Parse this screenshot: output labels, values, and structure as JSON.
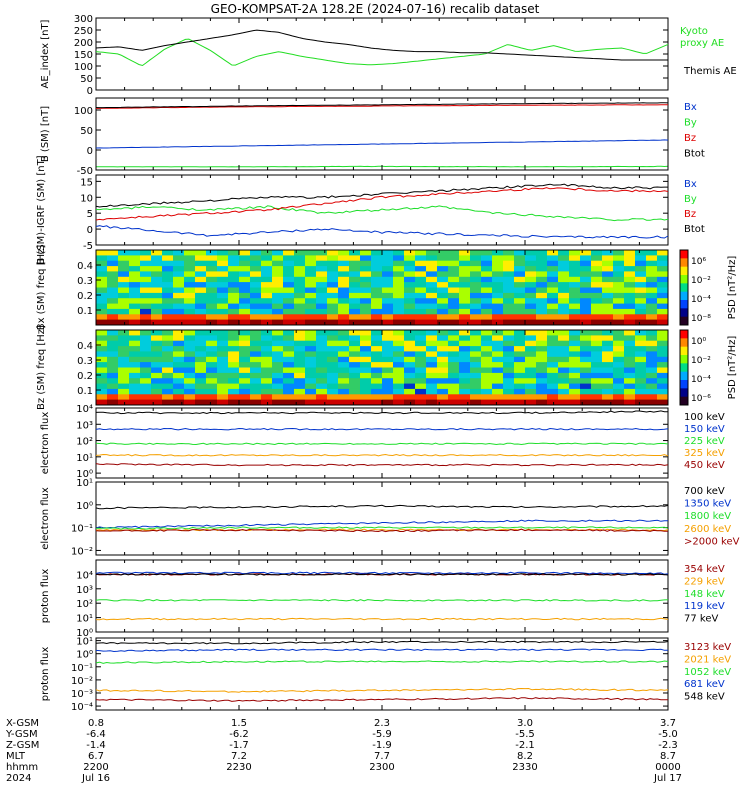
{
  "title": "GEO-KOMPSAT-2A 128.2E (2024-07-16) recalib dataset",
  "colors": {
    "black": "#000000",
    "blue": "#0033cc",
    "green": "#1ede2a",
    "red": "#dd0000",
    "orange": "#f5a000",
    "darkred": "#990000",
    "kyoto": "#22dd22"
  },
  "chart_data": [
    {
      "type": "line",
      "id": "ae",
      "ylabel": "AE_index [nT]",
      "ylim": [
        0,
        300
      ],
      "yticks": [
        "0",
        "50",
        "100",
        "150",
        "200",
        "250",
        "300"
      ],
      "x": [
        0,
        0.04,
        0.08,
        0.12,
        0.16,
        0.2,
        0.24,
        0.28,
        0.32,
        0.36,
        0.4,
        0.44,
        0.48,
        0.52,
        0.56,
        0.6,
        0.64,
        0.68,
        0.72,
        0.76,
        0.8,
        0.84,
        0.88,
        0.92,
        0.96,
        1.0
      ],
      "series": [
        {
          "name": "Kyoto proxy AE",
          "label_lines": [
            "Kyoto",
            "proxy AE"
          ],
          "color": "kyoto",
          "values": [
            160,
            150,
            100,
            170,
            215,
            165,
            100,
            140,
            160,
            140,
            125,
            110,
            105,
            110,
            120,
            130,
            140,
            150,
            190,
            165,
            185,
            160,
            170,
            175,
            150,
            190
          ]
        },
        {
          "name": "Themis AE",
          "label_lines": [
            "Themis AE"
          ],
          "color": "black",
          "values": [
            175,
            180,
            165,
            185,
            200,
            215,
            230,
            250,
            240,
            215,
            200,
            190,
            175,
            165,
            160,
            160,
            155,
            155,
            150,
            145,
            140,
            135,
            130,
            125,
            125,
            125
          ]
        }
      ]
    },
    {
      "type": "line",
      "id": "bsm",
      "ylabel": "B (SM) [nT]",
      "ylim": [
        -50,
        130
      ],
      "yticks": [
        "-50",
        "0",
        "50",
        "100"
      ],
      "x": [
        0,
        0.25,
        0.5,
        0.75,
        1.0
      ],
      "series": [
        {
          "name": "Bx",
          "color": "blue",
          "values": [
            5,
            10,
            15,
            20,
            25
          ]
        },
        {
          "name": "By",
          "color": "green",
          "values": [
            -42,
            -42,
            -41,
            -42,
            -41
          ]
        },
        {
          "name": "Bz",
          "color": "red",
          "values": [
            104,
            108,
            110,
            112,
            113
          ]
        },
        {
          "name": "Btot",
          "color": "black",
          "values": [
            106,
            110,
            113,
            116,
            118
          ]
        }
      ]
    },
    {
      "type": "line",
      "id": "bdiff",
      "ylabel": "B (SM)-IGRF (SM) [nT]",
      "ylim": [
        -5,
        17
      ],
      "yticks": [
        "-5",
        "0",
        "5",
        "10",
        "15"
      ],
      "x": [
        0,
        0.1,
        0.2,
        0.3,
        0.4,
        0.5,
        0.6,
        0.7,
        0.8,
        0.9,
        1.0
      ],
      "series": [
        {
          "name": "Bx",
          "color": "blue",
          "values": [
            1,
            -0.5,
            -2,
            -1,
            0,
            -1,
            -1.5,
            -2,
            -2.5,
            -2.5,
            -2.5
          ]
        },
        {
          "name": "By",
          "color": "green",
          "values": [
            6,
            7,
            6,
            7,
            5,
            6,
            7,
            5,
            4,
            3,
            3
          ]
        },
        {
          "name": "Bz",
          "color": "red",
          "values": [
            3,
            4,
            5,
            6,
            8,
            10,
            11,
            12,
            13,
            12,
            12
          ]
        },
        {
          "name": "Btot",
          "color": "black",
          "values": [
            7,
            8,
            9,
            10,
            10,
            11,
            12,
            13,
            14,
            13,
            13
          ]
        }
      ]
    },
    {
      "type": "heatmap",
      "id": "bx_spec",
      "ylabel": "Bx (SM) freq [Hz]",
      "yticks": [
        "0.1",
        "0.2",
        "0.3",
        "0.4"
      ],
      "colorbar_label": "PSD [nT²/Hz]",
      "colorbar_ticks": [
        "10⁶",
        "10⁻²",
        "10⁻⁴",
        "10⁻⁸"
      ]
    },
    {
      "type": "heatmap",
      "id": "bz_spec",
      "ylabel": "Bz (SM) freq [Hz]",
      "yticks": [
        "0.1",
        "0.2",
        "0.3",
        "0.4"
      ],
      "colorbar_label": "PSD [nT²/Hz]",
      "colorbar_ticks": [
        "10⁰",
        "10⁻²",
        "10⁻⁴",
        "10⁻⁶"
      ]
    },
    {
      "type": "line",
      "id": "eflux1",
      "scale": "log",
      "ylabel": "electron flux",
      "ylim": [
        -0.3,
        4
      ],
      "yticks": [
        "10⁰",
        "10¹",
        "10²",
        "10³",
        "10⁴"
      ],
      "x": [
        0,
        0.25,
        0.5,
        0.75,
        1.0
      ],
      "series": [
        {
          "name": "100 keV",
          "color": "black",
          "values": [
            3.7,
            3.7,
            3.7,
            3.7,
            3.8
          ]
        },
        {
          "name": "150 keV",
          "color": "blue",
          "values": [
            2.7,
            2.7,
            2.7,
            2.7,
            2.7
          ]
        },
        {
          "name": "225 keV",
          "color": "green",
          "values": [
            1.8,
            1.8,
            1.8,
            1.8,
            1.8
          ]
        },
        {
          "name": "325 keV",
          "color": "orange",
          "values": [
            1.1,
            1.1,
            1.1,
            1.1,
            1.1
          ]
        },
        {
          "name": "450 keV",
          "color": "darkred",
          "values": [
            0.55,
            0.5,
            0.5,
            0.5,
            0.5
          ]
        }
      ]
    },
    {
      "type": "line",
      "id": "eflux2",
      "scale": "log",
      "ylabel": "electron flux",
      "ylim": [
        -2.2,
        1
      ],
      "yticks": [
        "10⁻²",
        "10⁻¹",
        "10⁰",
        "10¹"
      ],
      "x": [
        0,
        0.25,
        0.5,
        0.75,
        1.0
      ],
      "series": [
        {
          "name": "700 keV",
          "color": "black",
          "values": [
            -0.15,
            -0.1,
            -0.05,
            -0.1,
            -0.05
          ]
        },
        {
          "name": "1350 keV",
          "color": "blue",
          "values": [
            -1.0,
            -0.9,
            -0.8,
            -0.7,
            -0.7
          ]
        },
        {
          "name": "1800 keV",
          "color": "green",
          "values": [
            -1.05,
            -1.0,
            -1.0,
            -1.0,
            -1.0
          ]
        },
        {
          "name": "2600 keV",
          "color": "orange",
          "values": [
            -1.1,
            -1.1,
            -1.1,
            -1.1,
            -1.1
          ]
        },
        {
          "name": ">2000 keV",
          "color": "darkred",
          "values": [
            -1.15,
            -1.1,
            -1.15,
            -1.1,
            -1.15
          ]
        }
      ]
    },
    {
      "type": "line",
      "id": "pflux1",
      "scale": "log",
      "ylabel": "proton flux",
      "ylim": [
        0,
        5
      ],
      "yticks": [
        "10⁰",
        "10¹",
        "10²",
        "10³",
        "10⁴"
      ],
      "x": [
        0,
        0.25,
        0.5,
        0.75,
        1.0
      ],
      "series": [
        {
          "name": "354 keV",
          "color": "darkred",
          "values": [
            4.0,
            4.0,
            4.0,
            4.0,
            4.0
          ]
        },
        {
          "name": "229 keV",
          "color": "orange",
          "values": [
            0.9,
            0.9,
            0.9,
            0.9,
            0.9
          ]
        },
        {
          "name": "148 keV",
          "color": "green",
          "values": [
            2.2,
            2.2,
            2.2,
            2.2,
            2.2
          ]
        },
        {
          "name": "119 keV",
          "color": "blue",
          "values": [
            4.1,
            4.1,
            4.1,
            4.1,
            4.05
          ]
        },
        {
          "name": "77 keV",
          "color": "black",
          "values": [
            4.0,
            4.0,
            4.0,
            4.0,
            4.0
          ]
        }
      ]
    },
    {
      "type": "line",
      "id": "pflux2",
      "scale": "log",
      "ylabel": "proton flux",
      "ylim": [
        -4.3,
        1.2
      ],
      "yticks": [
        "10⁻⁴",
        "10⁻³",
        "10⁻²",
        "10⁻¹",
        "10⁰",
        "10¹"
      ],
      "x": [
        0,
        0.25,
        0.5,
        0.75,
        1.0
      ],
      "series": [
        {
          "name": "3123 keV",
          "color": "darkred",
          "values": [
            -3.5,
            -3.6,
            -3.5,
            -3.4,
            -3.5
          ]
        },
        {
          "name": "2021 keV",
          "color": "orange",
          "values": [
            -2.8,
            -2.9,
            -2.8,
            -2.7,
            -2.8
          ]
        },
        {
          "name": "1052 keV",
          "color": "green",
          "values": [
            -0.7,
            -0.6,
            -0.6,
            -0.6,
            -0.6
          ]
        },
        {
          "name": "681 keV",
          "color": "blue",
          "values": [
            0.2,
            0.3,
            0.3,
            0.3,
            0.3
          ]
        },
        {
          "name": "548 keV",
          "color": "black",
          "values": [
            0.8,
            0.8,
            0.9,
            0.9,
            0.9
          ]
        }
      ]
    }
  ],
  "ephemeris": {
    "labels": [
      "X-GSM",
      "Y-GSM",
      "Z-GSM",
      "MLT",
      "hhmm",
      "2024"
    ],
    "columns": [
      [
        "0.8",
        "-6.4",
        "-1.4",
        "6.7",
        "2200",
        "Jul 16"
      ],
      [
        "1.5",
        "-6.2",
        "-1.7",
        "7.2",
        "2230",
        ""
      ],
      [
        "2.3",
        "-5.9",
        "-1.9",
        "7.7",
        "2300",
        ""
      ],
      [
        "3.0",
        "-5.5",
        "-2.1",
        "8.2",
        "2330",
        ""
      ],
      [
        "3.7",
        "-5.0",
        "-2.3",
        "8.7",
        "0000",
        "Jul 17"
      ]
    ]
  }
}
